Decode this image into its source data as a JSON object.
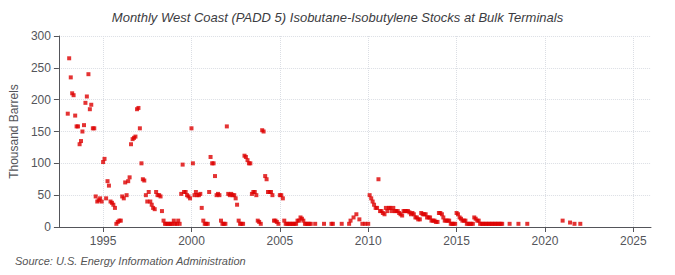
{
  "chart_data": {
    "type": "scatter",
    "title": "Monthly West Coast (PADD 5) Isobutane-Isobutylene Stocks at Bulk Terminals",
    "ylabel": "Thousand Barrels",
    "annotation": "Source: U.S. Energy Information Administration",
    "color": "#dd0000",
    "marker": "square",
    "grid": true,
    "xlim": [
      1992.5,
      2026
    ],
    "ylim": [
      0,
      300
    ],
    "xticks": [
      1995,
      2000,
      2005,
      2010,
      2015,
      2020,
      2025
    ],
    "yticks": [
      0,
      50,
      100,
      150,
      200,
      250,
      300
    ],
    "x": [
      1993.0,
      1993.08,
      1993.17,
      1993.25,
      1993.33,
      1993.42,
      1993.5,
      1993.58,
      1993.67,
      1993.75,
      1993.83,
      1993.92,
      1994.0,
      1994.08,
      1994.17,
      1994.25,
      1994.33,
      1994.42,
      1994.5,
      1994.58,
      1994.67,
      1994.75,
      1994.83,
      1994.92,
      1995.0,
      1995.08,
      1995.17,
      1995.25,
      1995.33,
      1995.42,
      1995.5,
      1995.58,
      1995.67,
      1995.75,
      1995.83,
      1995.92,
      1996.0,
      1996.08,
      1996.17,
      1996.25,
      1996.33,
      1996.42,
      1996.5,
      1996.58,
      1996.67,
      1996.75,
      1996.83,
      1996.92,
      1997.0,
      1997.08,
      1997.17,
      1997.25,
      1997.33,
      1997.42,
      1997.5,
      1997.58,
      1997.67,
      1997.75,
      1997.83,
      1997.92,
      1998.0,
      1998.08,
      1998.17,
      1998.25,
      1998.33,
      1998.42,
      1998.5,
      1998.58,
      1998.67,
      1998.75,
      1998.83,
      1998.92,
      1999.0,
      1999.08,
      1999.17,
      1999.25,
      1999.33,
      1999.42,
      1999.5,
      1999.58,
      1999.67,
      1999.75,
      1999.83,
      1999.92,
      2000.0,
      2000.08,
      2000.17,
      2000.25,
      2000.33,
      2000.42,
      2000.5,
      2000.58,
      2000.67,
      2000.75,
      2000.83,
      2000.92,
      2001.0,
      2001.08,
      2001.17,
      2001.25,
      2001.33,
      2001.42,
      2001.5,
      2001.58,
      2001.67,
      2001.75,
      2001.83,
      2001.92,
      2002.0,
      2002.08,
      2002.17,
      2002.25,
      2002.33,
      2002.42,
      2002.5,
      2002.58,
      2002.67,
      2002.75,
      2002.83,
      2002.92,
      2003.0,
      2003.08,
      2003.17,
      2003.25,
      2003.33,
      2003.42,
      2003.5,
      2003.58,
      2003.67,
      2003.75,
      2003.83,
      2003.92,
      2004.0,
      2004.08,
      2004.17,
      2004.25,
      2004.33,
      2004.42,
      2004.5,
      2004.58,
      2004.67,
      2004.75,
      2004.83,
      2004.92,
      2005.0,
      2005.08,
      2005.17,
      2005.25,
      2005.33,
      2005.42,
      2005.5,
      2005.58,
      2005.67,
      2005.75,
      2005.83,
      2005.92,
      2006.0,
      2006.08,
      2006.17,
      2006.25,
      2006.33,
      2006.42,
      2006.5,
      2006.58,
      2006.67,
      2006.75,
      2007.0,
      2007.5,
      2007.92,
      2008.0,
      2008.5,
      2008.92,
      2009.0,
      2009.17,
      2009.33,
      2009.5,
      2009.67,
      2009.83,
      2010.0,
      2010.08,
      2010.17,
      2010.25,
      2010.33,
      2010.42,
      2010.5,
      2010.58,
      2010.67,
      2010.75,
      2010.83,
      2010.92,
      2011.0,
      2011.08,
      2011.17,
      2011.25,
      2011.33,
      2011.42,
      2011.5,
      2011.58,
      2011.67,
      2011.75,
      2011.83,
      2011.92,
      2012.0,
      2012.08,
      2012.17,
      2012.25,
      2012.33,
      2012.42,
      2012.5,
      2012.58,
      2012.67,
      2012.75,
      2012.83,
      2012.92,
      2013.0,
      2013.08,
      2013.17,
      2013.25,
      2013.33,
      2013.42,
      2013.5,
      2013.58,
      2013.67,
      2013.75,
      2013.83,
      2013.92,
      2014.0,
      2014.08,
      2014.17,
      2014.25,
      2014.33,
      2014.42,
      2014.5,
      2014.58,
      2014.67,
      2014.75,
      2014.83,
      2014.92,
      2015.0,
      2015.08,
      2015.17,
      2015.25,
      2015.33,
      2015.42,
      2015.5,
      2015.58,
      2015.67,
      2015.75,
      2015.83,
      2015.92,
      2016.0,
      2016.08,
      2016.17,
      2016.25,
      2016.33,
      2016.42,
      2016.5,
      2016.58,
      2016.67,
      2016.75,
      2016.83,
      2016.92,
      2017.0,
      2017.08,
      2017.17,
      2017.25,
      2017.33,
      2017.42,
      2017.5,
      2017.58,
      2018.0,
      2018.5,
      2019.0,
      2021.0,
      2021.42,
      2021.67,
      2022.0
    ],
    "values": [
      178,
      265,
      235,
      210,
      207,
      175,
      158,
      158,
      130,
      135,
      150,
      160,
      195,
      205,
      240,
      185,
      192,
      155,
      155,
      48,
      40,
      42,
      45,
      40,
      102,
      107,
      45,
      72,
      65,
      40,
      38,
      35,
      30,
      5,
      8,
      10,
      10,
      48,
      45,
      70,
      50,
      72,
      78,
      130,
      138,
      140,
      142,
      185,
      187,
      155,
      100,
      75,
      73,
      50,
      40,
      55,
      40,
      35,
      30,
      28,
      55,
      50,
      50,
      48,
      25,
      10,
      5,
      5,
      5,
      5,
      5,
      5,
      10,
      5,
      5,
      10,
      5,
      52,
      98,
      55,
      55,
      50,
      48,
      45,
      155,
      100,
      50,
      55,
      50,
      50,
      52,
      30,
      10,
      5,
      5,
      5,
      55,
      110,
      100,
      100,
      80,
      50,
      52,
      50,
      10,
      5,
      5,
      5,
      158,
      52,
      50,
      52,
      50,
      50,
      45,
      35,
      10,
      5,
      5,
      5,
      112,
      110,
      105,
      100,
      100,
      52,
      55,
      55,
      50,
      10,
      8,
      5,
      152,
      150,
      80,
      75,
      55,
      55,
      55,
      50,
      10,
      10,
      8,
      5,
      50,
      50,
      45,
      10,
      5,
      5,
      5,
      5,
      5,
      5,
      5,
      5,
      10,
      10,
      15,
      13,
      10,
      5,
      5,
      5,
      5,
      5,
      5,
      5,
      5,
      5,
      5,
      5,
      10,
      15,
      20,
      12,
      5,
      5,
      5,
      50,
      45,
      40,
      35,
      30,
      30,
      75,
      25,
      25,
      22,
      20,
      30,
      25,
      30,
      30,
      25,
      30,
      25,
      25,
      25,
      22,
      20,
      18,
      25,
      25,
      25,
      25,
      23,
      20,
      22,
      20,
      15,
      15,
      12,
      12,
      22,
      20,
      20,
      20,
      15,
      15,
      15,
      10,
      10,
      10,
      8,
      8,
      22,
      22,
      20,
      15,
      10,
      10,
      10,
      10,
      5,
      5,
      5,
      5,
      22,
      20,
      15,
      13,
      10,
      10,
      10,
      5,
      5,
      5,
      5,
      5,
      15,
      13,
      10,
      10,
      5,
      5,
      5,
      5,
      5,
      5,
      5,
      5,
      5,
      5,
      5,
      5,
      5,
      5,
      5,
      5,
      5,
      5,
      5,
      10,
      7,
      5,
      5
    ]
  }
}
